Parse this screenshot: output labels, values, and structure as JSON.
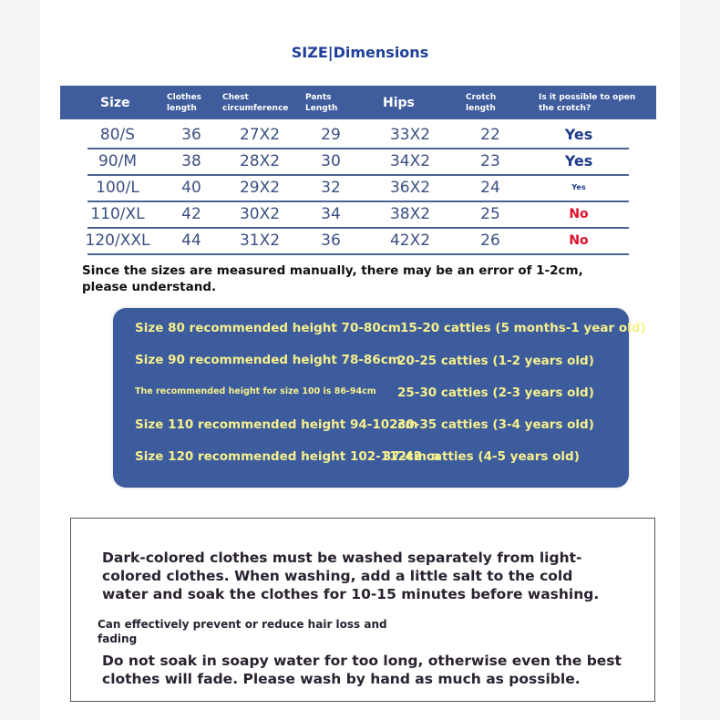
{
  "title": "SIZE|Dimensions",
  "table": {
    "headers": [
      "Size",
      "Clothes length",
      "Chest circumference",
      "Pants Length",
      "Hips",
      "Crotch length",
      "Is it possible to open the crotch?"
    ],
    "rows": [
      [
        "80/S",
        "36",
        "27X2",
        "29",
        "33X2",
        "22",
        "Yes"
      ],
      [
        "90/M",
        "38",
        "28X2",
        "30",
        "34X2",
        "23",
        "Yes"
      ],
      [
        "100/L",
        "40",
        "29X2",
        "32",
        "36X2",
        "24",
        "Yes"
      ],
      [
        "110/XL",
        "42",
        "30X2",
        "34",
        "38X2",
        "25",
        "No"
      ],
      [
        "120/XXL",
        "44",
        "31X2",
        "36",
        "42X2",
        "26",
        "No"
      ]
    ]
  },
  "note": "Since the sizes are measured manually, there may be an error of 1-2cm, please understand.",
  "recommendations": [
    {
      "height": "Size 80 recommended height 70-80cm",
      "weight": "15-20 catties (5 months-1 year old)"
    },
    {
      "height": "Size 90 recommended height 78-86cm",
      "weight": "20-25 catties (1-2 years old)"
    },
    {
      "height": "The recommended height for size 100 is 86-94cm",
      "weight": "25-30 catties (2-3 years old)"
    },
    {
      "height": "Size 110 recommended height 94-102cm",
      "weight": "30-35 catties (3-4 years old)"
    },
    {
      "height": "Size 120 recommended height 102-112cm n",
      "weight": "37-42 catties (4-5 years old)"
    }
  ],
  "care": {
    "p1": "Dark-colored clothes must be washed separately from light-colored clothes. When washing, add a little salt to the cold water and soak the clothes for 10-15 minutes before washing.",
    "p2": "Can effectively prevent or reduce hair loss and fading",
    "p3": "Do not soak in soapy water for too long, otherwise even the best clothes will fade. Please wash by hand as much as possible."
  },
  "colors": {
    "header_blue": "#3f5c9c",
    "yes_blue": "#1f3a8a",
    "no_red": "#e0102a",
    "highlight_yellow": "#f6f08c"
  }
}
